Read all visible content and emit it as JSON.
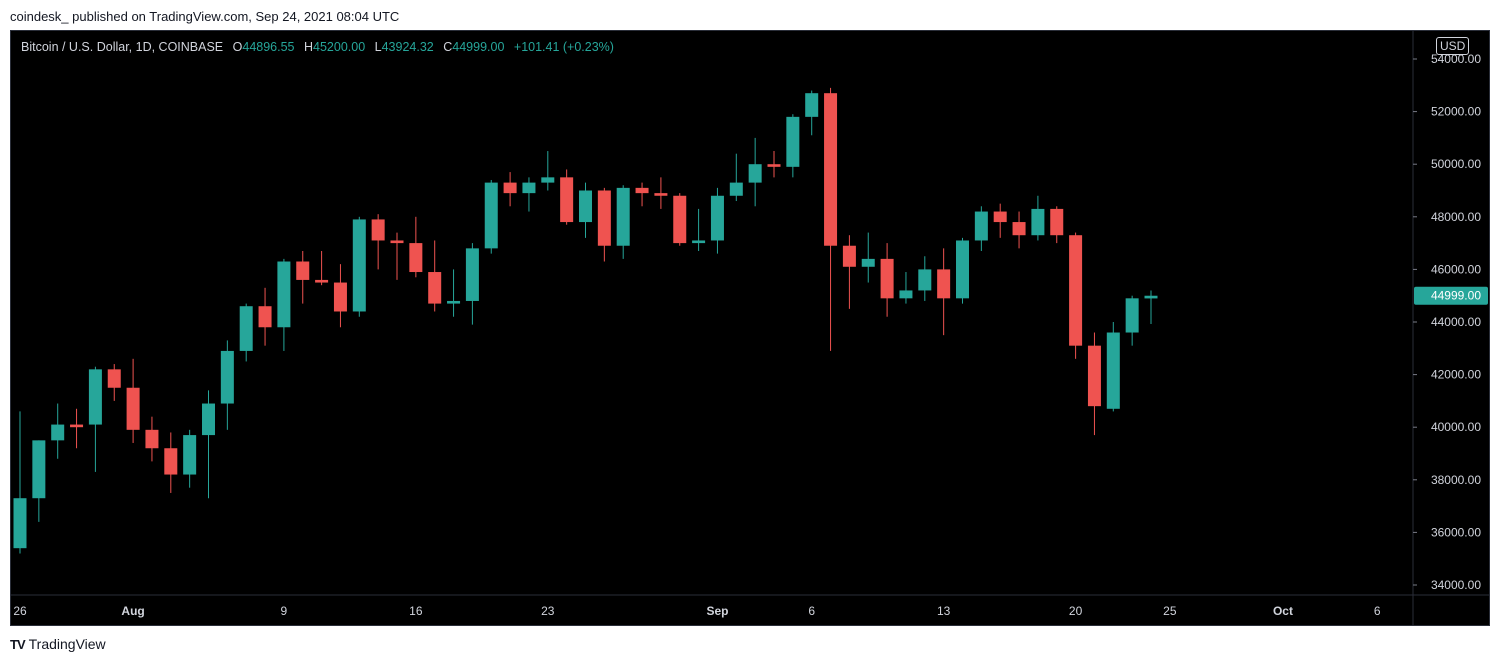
{
  "header": {
    "author": "coindesk_",
    "published_text": "published on TradingView.com, Sep 24, 2021 08:04 UTC"
  },
  "legend": {
    "symbol": "Bitcoin / U.S. Dollar, 1D, COINBASE",
    "open_label": "O",
    "open": "44896.55",
    "high_label": "H",
    "high": "45200.00",
    "low_label": "L",
    "low": "43924.32",
    "close_label": "C",
    "close": "44999.00",
    "change": "+101.41 (+0.23%)"
  },
  "currency": "USD",
  "last_price_label": "44999.00",
  "footer": {
    "logo_icon": "tradingview-logo-icon",
    "brand": "TradingView"
  },
  "colors": {
    "up": "#26a69a",
    "down": "#ef5350",
    "background": "#000000",
    "axis_text": "#d1d4dc"
  },
  "chart_data": {
    "type": "candlestick",
    "x_tick_labels": [
      "26",
      "Aug",
      "9",
      "16",
      "23",
      "Sep",
      "6",
      "13",
      "20",
      "25",
      "Oct",
      "6"
    ],
    "y_tick_labels": [
      "34000.00",
      "36000.00",
      "38000.00",
      "40000.00",
      "42000.00",
      "44000.00",
      "46000.00",
      "48000.00",
      "50000.00",
      "52000.00",
      "54000.00"
    ],
    "ylim": [
      33500,
      55000
    ],
    "grid": false,
    "candles": [
      {
        "date": "2021-07-26",
        "o": 35400,
        "h": 40600,
        "l": 35200,
        "c": 37300
      },
      {
        "date": "2021-07-27",
        "o": 37300,
        "h": 39500,
        "l": 36400,
        "c": 39500
      },
      {
        "date": "2021-07-28",
        "o": 39500,
        "h": 40900,
        "l": 38800,
        "c": 40100
      },
      {
        "date": "2021-07-29",
        "o": 40100,
        "h": 40700,
        "l": 39200,
        "c": 40000
      },
      {
        "date": "2021-07-30",
        "o": 40100,
        "h": 42300,
        "l": 38300,
        "c": 42200
      },
      {
        "date": "2021-07-31",
        "o": 42200,
        "h": 42400,
        "l": 41000,
        "c": 41500
      },
      {
        "date": "2021-08-01",
        "o": 41500,
        "h": 42600,
        "l": 39400,
        "c": 39900
      },
      {
        "date": "2021-08-02",
        "o": 39900,
        "h": 40400,
        "l": 38700,
        "c": 39200
      },
      {
        "date": "2021-08-03",
        "o": 39200,
        "h": 39800,
        "l": 37500,
        "c": 38200
      },
      {
        "date": "2021-08-04",
        "o": 38200,
        "h": 39900,
        "l": 37700,
        "c": 39700
      },
      {
        "date": "2021-08-05",
        "o": 39700,
        "h": 41400,
        "l": 37300,
        "c": 40900
      },
      {
        "date": "2021-08-06",
        "o": 40900,
        "h": 43300,
        "l": 39900,
        "c": 42900
      },
      {
        "date": "2021-08-07",
        "o": 42900,
        "h": 44700,
        "l": 42500,
        "c": 44600
      },
      {
        "date": "2021-08-08",
        "o": 44600,
        "h": 45300,
        "l": 43100,
        "c": 43800
      },
      {
        "date": "2021-08-09",
        "o": 43800,
        "h": 46400,
        "l": 42900,
        "c": 46300
      },
      {
        "date": "2021-08-10",
        "o": 46300,
        "h": 46700,
        "l": 44700,
        "c": 45600
      },
      {
        "date": "2021-08-11",
        "o": 45600,
        "h": 46700,
        "l": 45400,
        "c": 45500
      },
      {
        "date": "2021-08-12",
        "o": 45500,
        "h": 46200,
        "l": 43800,
        "c": 44400
      },
      {
        "date": "2021-08-13",
        "o": 44400,
        "h": 48000,
        "l": 44200,
        "c": 47900
      },
      {
        "date": "2021-08-14",
        "o": 47900,
        "h": 48100,
        "l": 46000,
        "c": 47100
      },
      {
        "date": "2021-08-15",
        "o": 47100,
        "h": 47400,
        "l": 45600,
        "c": 47000
      },
      {
        "date": "2021-08-16",
        "o": 47000,
        "h": 48000,
        "l": 45700,
        "c": 45900
      },
      {
        "date": "2021-08-17",
        "o": 45900,
        "h": 47100,
        "l": 44400,
        "c": 44700
      },
      {
        "date": "2021-08-18",
        "o": 44700,
        "h": 46000,
        "l": 44200,
        "c": 44800
      },
      {
        "date": "2021-08-19",
        "o": 44800,
        "h": 47000,
        "l": 43900,
        "c": 46800
      },
      {
        "date": "2021-08-20",
        "o": 46800,
        "h": 49400,
        "l": 46600,
        "c": 49300
      },
      {
        "date": "2021-08-21",
        "o": 49300,
        "h": 49700,
        "l": 48400,
        "c": 48900
      },
      {
        "date": "2021-08-22",
        "o": 48900,
        "h": 49500,
        "l": 48200,
        "c": 49300
      },
      {
        "date": "2021-08-23",
        "o": 49300,
        "h": 50500,
        "l": 49000,
        "c": 49500
      },
      {
        "date": "2021-08-24",
        "o": 49500,
        "h": 49800,
        "l": 47700,
        "c": 47800
      },
      {
        "date": "2021-08-25",
        "o": 47800,
        "h": 49300,
        "l": 47200,
        "c": 49000
      },
      {
        "date": "2021-08-26",
        "o": 49000,
        "h": 49100,
        "l": 46300,
        "c": 46900
      },
      {
        "date": "2021-08-27",
        "o": 46900,
        "h": 49200,
        "l": 46400,
        "c": 49100
      },
      {
        "date": "2021-08-28",
        "o": 49100,
        "h": 49300,
        "l": 48400,
        "c": 48900
      },
      {
        "date": "2021-08-29",
        "o": 48900,
        "h": 49500,
        "l": 48300,
        "c": 48800
      },
      {
        "date": "2021-08-30",
        "o": 48800,
        "h": 48900,
        "l": 46900,
        "c": 47000
      },
      {
        "date": "2021-08-31",
        "o": 47000,
        "h": 48300,
        "l": 46700,
        "c": 47100
      },
      {
        "date": "2021-09-01",
        "o": 47100,
        "h": 49100,
        "l": 46600,
        "c": 48800
      },
      {
        "date": "2021-09-02",
        "o": 48800,
        "h": 50400,
        "l": 48600,
        "c": 49300
      },
      {
        "date": "2021-09-03",
        "o": 49300,
        "h": 51000,
        "l": 48400,
        "c": 50000
      },
      {
        "date": "2021-09-04",
        "o": 50000,
        "h": 50500,
        "l": 49500,
        "c": 49900
      },
      {
        "date": "2021-09-05",
        "o": 49900,
        "h": 51900,
        "l": 49500,
        "c": 51800
      },
      {
        "date": "2021-09-06",
        "o": 51800,
        "h": 52800,
        "l": 51100,
        "c": 52700
      },
      {
        "date": "2021-09-07",
        "o": 52700,
        "h": 52900,
        "l": 42900,
        "c": 46900
      },
      {
        "date": "2021-09-08",
        "o": 46900,
        "h": 47300,
        "l": 44500,
        "c": 46100
      },
      {
        "date": "2021-09-09",
        "o": 46100,
        "h": 47400,
        "l": 45500,
        "c": 46400
      },
      {
        "date": "2021-09-10",
        "o": 46400,
        "h": 47000,
        "l": 44200,
        "c": 44900
      },
      {
        "date": "2021-09-11",
        "o": 44900,
        "h": 45900,
        "l": 44700,
        "c": 45200
      },
      {
        "date": "2021-09-12",
        "o": 45200,
        "h": 46500,
        "l": 44800,
        "c": 46000
      },
      {
        "date": "2021-09-13",
        "o": 46000,
        "h": 46800,
        "l": 43500,
        "c": 44900
      },
      {
        "date": "2021-09-14",
        "o": 44900,
        "h": 47200,
        "l": 44700,
        "c": 47100
      },
      {
        "date": "2021-09-15",
        "o": 47100,
        "h": 48400,
        "l": 46700,
        "c": 48200
      },
      {
        "date": "2021-09-16",
        "o": 48200,
        "h": 48500,
        "l": 47200,
        "c": 47800
      },
      {
        "date": "2021-09-17",
        "o": 47800,
        "h": 48200,
        "l": 46800,
        "c": 47300
      },
      {
        "date": "2021-09-18",
        "o": 47300,
        "h": 48800,
        "l": 47100,
        "c": 48300
      },
      {
        "date": "2021-09-19",
        "o": 48300,
        "h": 48400,
        "l": 47000,
        "c": 47300
      },
      {
        "date": "2021-09-20",
        "o": 47300,
        "h": 47400,
        "l": 42600,
        "c": 43100
      },
      {
        "date": "2021-09-21",
        "o": 43100,
        "h": 43600,
        "l": 39700,
        "c": 40800
      },
      {
        "date": "2021-09-22",
        "o": 40700,
        "h": 44000,
        "l": 40600,
        "c": 43600
      },
      {
        "date": "2021-09-23",
        "o": 43600,
        "h": 45000,
        "l": 43100,
        "c": 44900
      },
      {
        "date": "2021-09-24",
        "o": 44896.55,
        "h": 45200,
        "l": 43924.32,
        "c": 44999
      }
    ]
  }
}
